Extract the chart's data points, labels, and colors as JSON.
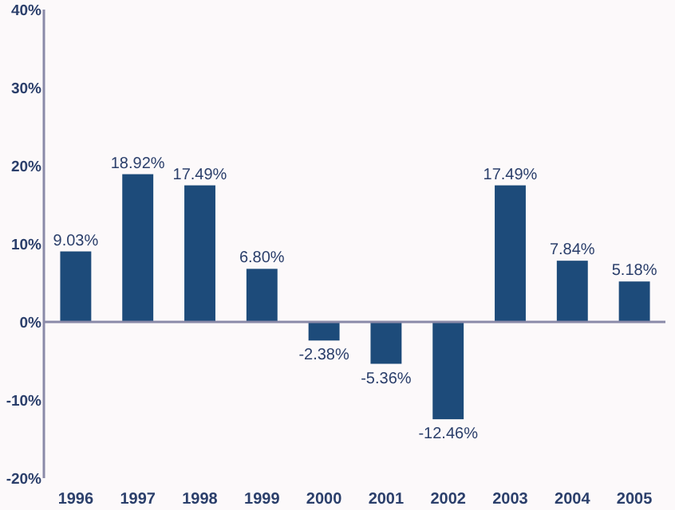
{
  "chart_data": {
    "type": "bar",
    "categories": [
      "1996",
      "1997",
      "1998",
      "1999",
      "2000",
      "2001",
      "2002",
      "2003",
      "2004",
      "2005"
    ],
    "values": [
      9.03,
      18.92,
      17.49,
      6.8,
      -2.38,
      -5.36,
      -12.46,
      17.49,
      7.84,
      5.18
    ],
    "value_labels": [
      "9.03%",
      "18.92%",
      "17.49%",
      "6.80%",
      "-2.38%",
      "-5.36%",
      "-12.46%",
      "17.49%",
      "7.84%",
      "5.18%"
    ],
    "color": "#1d4b7a",
    "ylim": [
      -20,
      40
    ],
    "yticks": [
      {
        "value": -20,
        "label": "-20%"
      },
      {
        "value": -10,
        "label": "-10%"
      },
      {
        "value": 0,
        "label": "0%"
      },
      {
        "value": 10,
        "label": "10%"
      },
      {
        "value": 20,
        "label": "20%"
      },
      {
        "value": 30,
        "label": "30%"
      },
      {
        "value": 40,
        "label": "40%"
      }
    ]
  }
}
